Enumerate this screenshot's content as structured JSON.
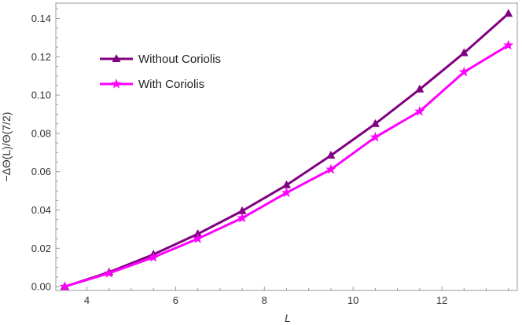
{
  "chart_data": {
    "type": "line",
    "xlabel": "L",
    "ylabel": "−ΔΘ(L)/Θ(7/2)",
    "xlim": [
      3.3,
      13.7
    ],
    "ylim": [
      -0.002,
      0.148
    ],
    "xticks": [
      4,
      6,
      8,
      10,
      12
    ],
    "xtick_labels": [
      "4",
      "6",
      "8",
      "10",
      "12"
    ],
    "yticks": [
      0.0,
      0.02,
      0.04,
      0.06,
      0.08,
      0.1,
      0.12,
      0.14
    ],
    "ytick_labels": [
      "0.00",
      "0.02",
      "0.04",
      "0.06",
      "0.08",
      "0.10",
      "0.12",
      "0.14"
    ],
    "grid": false,
    "legend_position": "upper-left",
    "x": [
      3.5,
      4.5,
      5.5,
      6.5,
      7.5,
      8.5,
      9.5,
      10.5,
      11.5,
      12.5,
      13.5
    ],
    "series": [
      {
        "name": "Without Coriolis",
        "marker": "triangle",
        "color": "#800080",
        "values": [
          0.0,
          0.0075,
          0.0168,
          0.0275,
          0.0395,
          0.053,
          0.0685,
          0.085,
          0.103,
          0.122,
          0.1425
        ]
      },
      {
        "name": "With Coriolis",
        "marker": "star",
        "color": "#ff00ff",
        "values": [
          0.0,
          0.007,
          0.0153,
          0.025,
          0.0358,
          0.049,
          0.0612,
          0.078,
          0.0915,
          0.112,
          0.126
        ]
      }
    ]
  }
}
